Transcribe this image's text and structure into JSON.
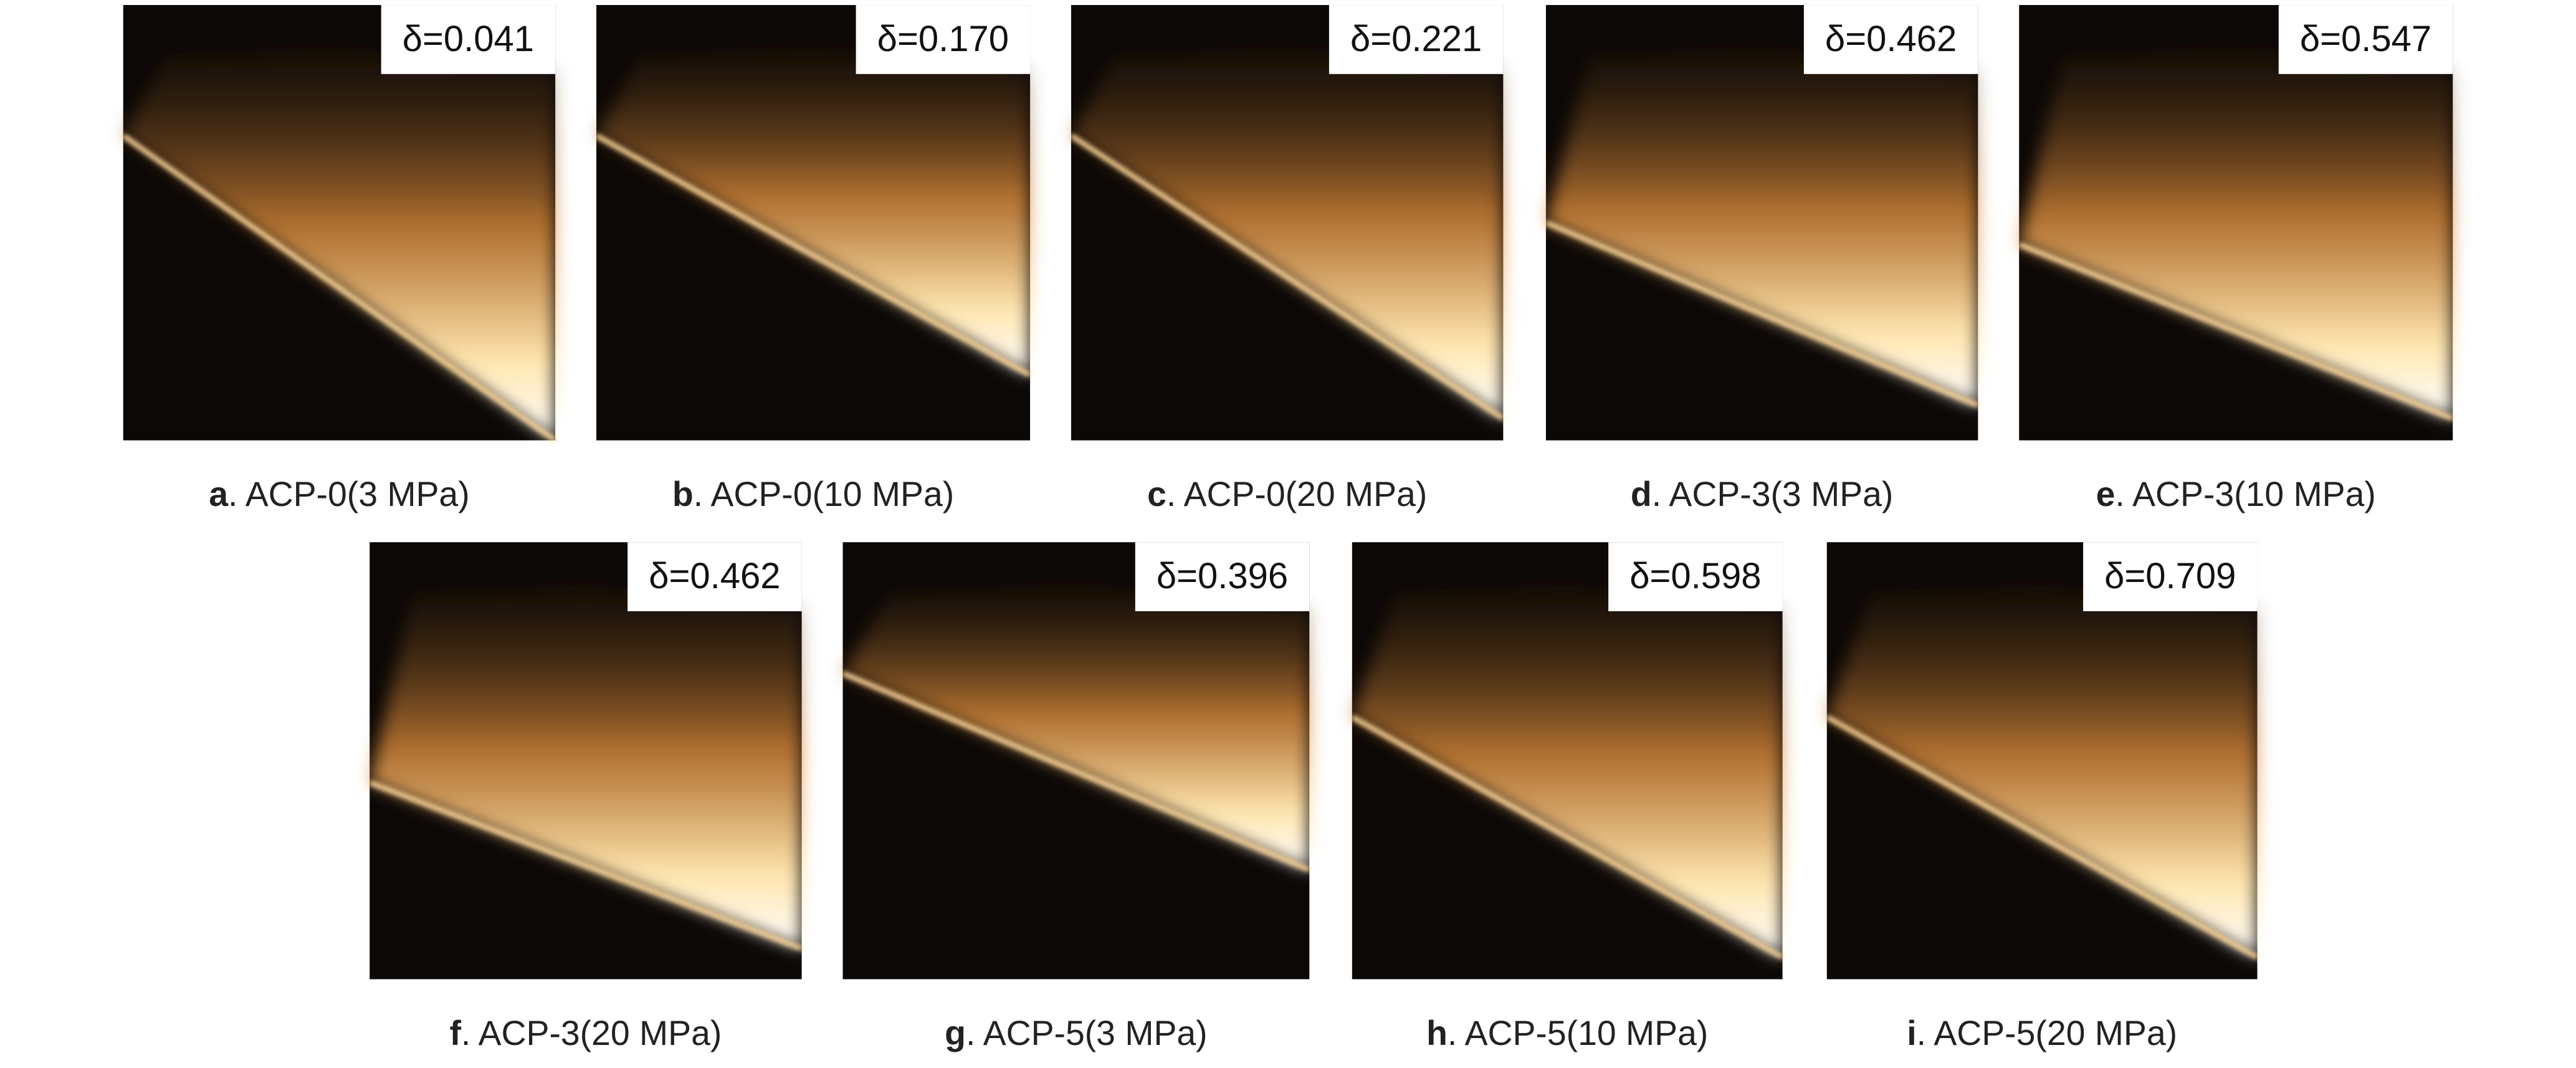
{
  "panels": [
    {
      "letter": "a",
      "caption": ". ACP-0(3 MPa)",
      "delta": "δ=0.041"
    },
    {
      "letter": "b",
      "caption": ". ACP-0(10 MPa)",
      "delta": "δ=0.170"
    },
    {
      "letter": "c",
      "caption": ". ACP-0(20 MPa)",
      "delta": "δ=0.221"
    },
    {
      "letter": "d",
      "caption": ". ACP-3(3 MPa)",
      "delta": "δ=0.462"
    },
    {
      "letter": "e",
      "caption": ". ACP-3(10 MPa)",
      "delta": "δ=0.547"
    },
    {
      "letter": "f",
      "caption": ". ACP-3(20 MPa)",
      "delta": "δ=0.462"
    },
    {
      "letter": "g",
      "caption": ". ACP-5(3 MPa)",
      "delta": "δ=0.396"
    },
    {
      "letter": "h",
      "caption": ". ACP-5(10 MPa)",
      "delta": "δ=0.598"
    },
    {
      "letter": "i",
      "caption": ". ACP-5(20 MPa)",
      "delta": "δ=0.709"
    }
  ]
}
